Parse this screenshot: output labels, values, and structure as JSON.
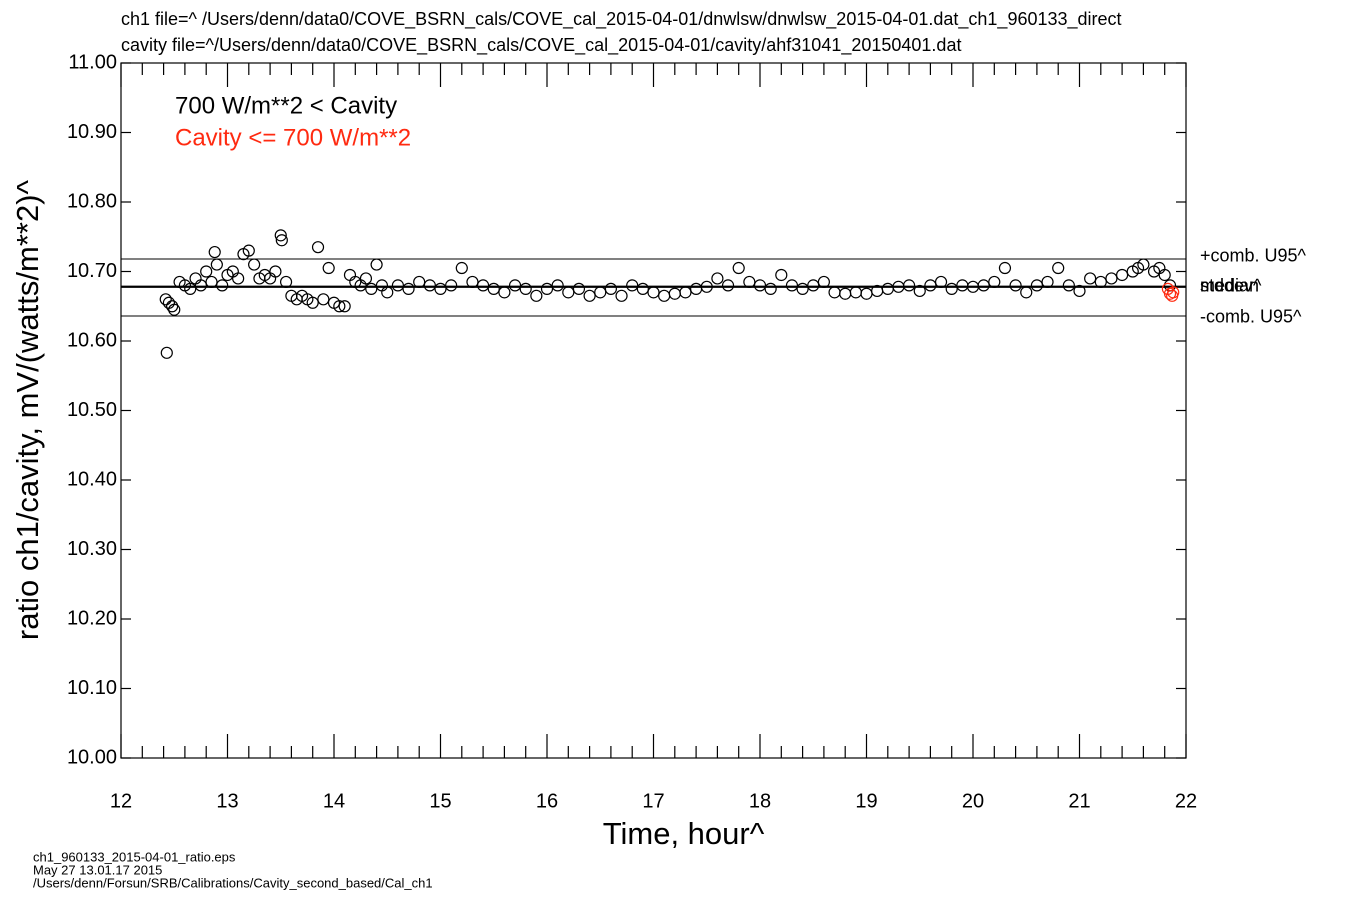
{
  "chart_data": {
    "type": "scatter",
    "title_lines": [
      "ch1 file=^  /Users/denn/data0/COVE_BSRN_cals/COVE_cal_2015-04-01/dnwlsw/dnwlsw_2015-04-01.dat_ch1_960133_direct",
      "cavity file=^/Users/denn/data0/COVE_BSRN_cals/COVE_cal_2015-04-01/cavity/ahf31041_20150401.dat"
    ],
    "x_label": "Time, hour^",
    "y_label": "ratio ch1/cavity, mV/(watts/m**2)^",
    "xlim": [
      12,
      22
    ],
    "xticks": [
      12,
      13,
      14,
      15,
      16,
      17,
      18,
      19,
      20,
      21,
      22
    ],
    "ylim": [
      10.0,
      11.0
    ],
    "yticks": [
      {
        "value": 10.0,
        "label": "10.00"
      },
      {
        "value": 10.1,
        "label": "10.10"
      },
      {
        "value": 10.2,
        "label": "10.20"
      },
      {
        "value": 10.3,
        "label": "10.30"
      },
      {
        "value": 10.4,
        "label": "10.40"
      },
      {
        "value": 10.5,
        "label": "10.50"
      },
      {
        "value": 10.6,
        "label": "10.60"
      },
      {
        "value": 10.7,
        "label": "10.70"
      },
      {
        "value": 10.8,
        "label": "10.80"
      },
      {
        "value": 10.9,
        "label": "10.90"
      },
      {
        "value": 11.0,
        "label": "11.00"
      }
    ],
    "reference_lines": [
      {
        "label": "+comb. U95^",
        "value": 10.718
      },
      {
        "label": "median",
        "value": 10.678
      },
      {
        "label": "stddev^",
        "value": 10.678
      },
      {
        "label": "-comb. U95^",
        "value": 10.636
      }
    ],
    "series": [
      {
        "name": "700 W/m**2 < Cavity",
        "color": "#000000",
        "x": [
          12.42,
          12.45,
          12.48,
          12.43,
          12.5,
          12.55,
          12.6,
          12.65,
          12.7,
          12.75,
          12.8,
          12.85,
          12.88,
          12.9,
          12.95,
          13.0,
          13.05,
          13.1,
          13.15,
          13.2,
          13.25,
          13.3,
          13.35,
          13.4,
          13.45,
          13.5,
          13.51,
          13.55,
          13.6,
          13.65,
          13.7,
          13.75,
          13.8,
          13.85,
          13.9,
          13.95,
          14.0,
          14.05,
          14.1,
          14.15,
          14.2,
          14.25,
          14.3,
          14.35,
          14.4,
          14.45,
          14.5,
          14.6,
          14.7,
          14.8,
          14.9,
          15.0,
          15.1,
          15.2,
          15.3,
          15.4,
          15.5,
          15.6,
          15.7,
          15.8,
          15.9,
          16.0,
          16.1,
          16.2,
          16.3,
          16.4,
          16.5,
          16.6,
          16.7,
          16.8,
          16.9,
          17.0,
          17.1,
          17.2,
          17.3,
          17.4,
          17.5,
          17.6,
          17.7,
          17.8,
          17.9,
          18.0,
          18.1,
          18.2,
          18.3,
          18.4,
          18.5,
          18.6,
          18.7,
          18.8,
          18.9,
          19.0,
          19.1,
          19.2,
          19.3,
          19.4,
          19.5,
          19.6,
          19.7,
          19.8,
          19.9,
          20.0,
          20.1,
          20.2,
          20.3,
          20.4,
          20.5,
          20.6,
          20.7,
          20.8,
          20.9,
          21.0,
          21.1,
          21.2,
          21.3,
          21.4,
          21.5,
          21.55,
          21.6,
          21.7,
          21.75,
          21.8,
          21.85
        ],
        "values": [
          10.66,
          10.655,
          10.65,
          10.583,
          10.645,
          10.685,
          10.68,
          10.675,
          10.69,
          10.68,
          10.7,
          10.685,
          10.728,
          10.71,
          10.68,
          10.695,
          10.7,
          10.69,
          10.725,
          10.73,
          10.71,
          10.69,
          10.695,
          10.69,
          10.7,
          10.752,
          10.745,
          10.685,
          10.665,
          10.66,
          10.665,
          10.66,
          10.655,
          10.735,
          10.66,
          10.705,
          10.655,
          10.65,
          10.65,
          10.695,
          10.685,
          10.68,
          10.69,
          10.675,
          10.71,
          10.68,
          10.67,
          10.68,
          10.675,
          10.685,
          10.68,
          10.675,
          10.68,
          10.705,
          10.685,
          10.68,
          10.675,
          10.67,
          10.68,
          10.675,
          10.665,
          10.675,
          10.68,
          10.67,
          10.675,
          10.665,
          10.67,
          10.675,
          10.665,
          10.68,
          10.675,
          10.67,
          10.665,
          10.668,
          10.67,
          10.675,
          10.678,
          10.69,
          10.68,
          10.705,
          10.685,
          10.68,
          10.675,
          10.695,
          10.68,
          10.675,
          10.68,
          10.685,
          10.67,
          10.668,
          10.67,
          10.668,
          10.672,
          10.675,
          10.678,
          10.68,
          10.672,
          10.68,
          10.685,
          10.675,
          10.68,
          10.678,
          10.68,
          10.685,
          10.705,
          10.68,
          10.67,
          10.68,
          10.685,
          10.705,
          10.68,
          10.672,
          10.69,
          10.685,
          10.69,
          10.695,
          10.7,
          10.705,
          10.71,
          10.7,
          10.705,
          10.695,
          10.68
        ]
      },
      {
        "name": "Cavity <= 700 W/m**2",
        "color": "#ff2a10",
        "x": [
          21.83,
          21.85,
          21.87,
          21.88
        ],
        "values": [
          10.675,
          10.668,
          10.665,
          10.67
        ]
      }
    ],
    "footer_lines": [
      "ch1_960133_2015-04-01_ratio.eps",
      "May 27 13.01.17 2015",
      "/Users/denn/Forsun/SRB/Calibrations/Cavity_second_based/Cal_ch1"
    ]
  }
}
